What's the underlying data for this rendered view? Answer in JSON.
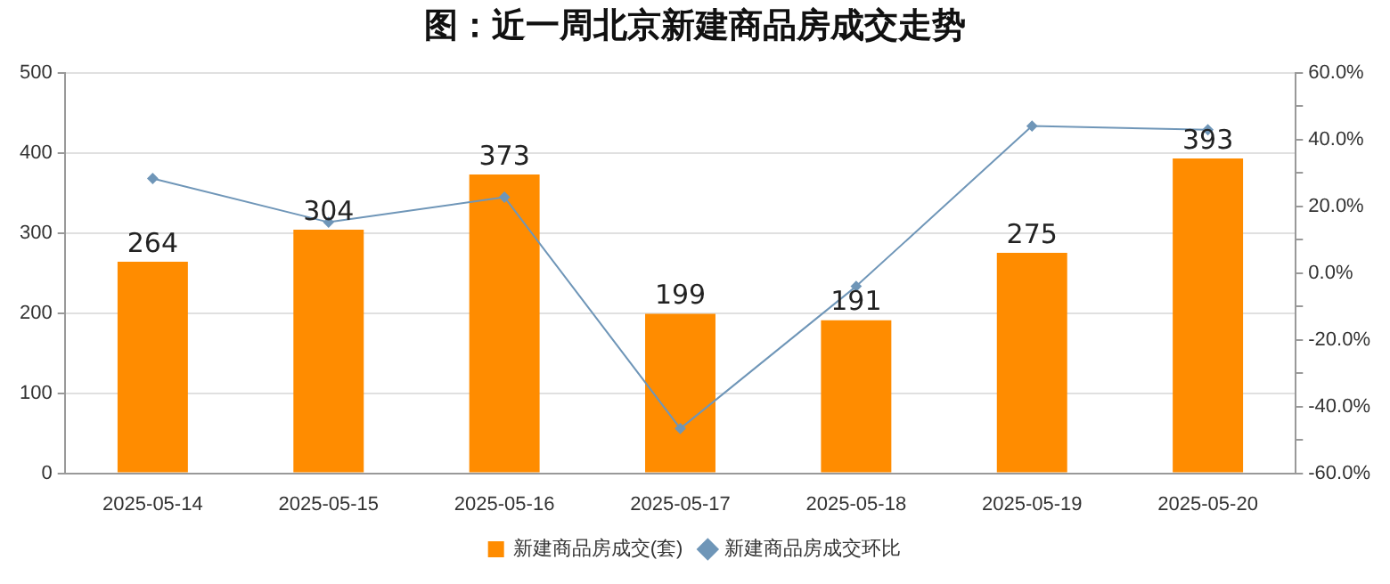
{
  "chart_data": {
    "type": "bar",
    "title": "图：近一周北京新建商品房成交走势",
    "categories": [
      "2025-05-14",
      "2025-05-15",
      "2025-05-16",
      "2025-05-17",
      "2025-05-18",
      "2025-05-19",
      "2025-05-20"
    ],
    "series": [
      {
        "name": "新建商品房成交(套)",
        "color": "#ff8c00",
        "values": [
          264,
          304,
          373,
          199,
          191,
          275,
          393
        ],
        "value_labels": [
          "264",
          "304",
          "373",
          "199",
          "191",
          "275",
          "393"
        ]
      },
      {
        "name": "新建商品房成交环比",
        "type": "line",
        "axis": "y2",
        "color": "#6f96b8",
        "marker": "diamond",
        "values": [
          28.3,
          15.2,
          22.7,
          -46.6,
          -4.0,
          44.0,
          42.9
        ]
      }
    ],
    "ylim": [
      0,
      500
    ],
    "yticks": [
      0,
      100,
      200,
      300,
      400,
      500
    ],
    "y2lim": [
      -60,
      60
    ],
    "y2ticks": [
      {
        "value": -60,
        "label": "-60.0%"
      },
      {
        "value": -50,
        "label": null
      },
      {
        "value": -40,
        "label": "-40.0%"
      },
      {
        "value": -30,
        "label": null
      },
      {
        "value": -20,
        "label": "-20.0%"
      },
      {
        "value": -10,
        "label": null
      },
      {
        "value": 0,
        "label": "0.0%"
      },
      {
        "value": 10,
        "label": null
      },
      {
        "value": 20,
        "label": "20.0%"
      },
      {
        "value": 30,
        "label": null
      },
      {
        "value": 40,
        "label": "40.0%"
      },
      {
        "value": 50,
        "label": null
      },
      {
        "value": 60,
        "label": "60.0%"
      }
    ],
    "grid": "y",
    "legend": "bottom"
  }
}
